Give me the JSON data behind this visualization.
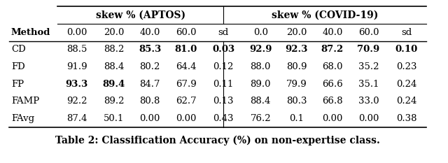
{
  "title": "Table 2: Classification Accuracy (%) on non-expertise class.",
  "col_group1_header": "skew % (APTOS)",
  "col_group2_header": "skew % (COVID-19)",
  "method_header": "Method",
  "sub_headers": [
    "0.00",
    "20.0",
    "40.0",
    "60.0",
    "sd",
    "0.0",
    "20.0",
    "40.0",
    "60.0",
    "sd"
  ],
  "methods": [
    "CD",
    "FD",
    "FP",
    "FAMP",
    "FAvg"
  ],
  "data": [
    [
      "88.5",
      "88.2",
      "85.3",
      "81.0",
      "0.03",
      "92.9",
      "92.3",
      "87.2",
      "70.9",
      "0.10"
    ],
    [
      "91.9",
      "88.4",
      "80.2",
      "64.4",
      "0.12",
      "88.0",
      "80.9",
      "68.0",
      "35.2",
      "0.23"
    ],
    [
      "93.3",
      "89.4",
      "84.7",
      "67.9",
      "0.11",
      "89.0",
      "79.9",
      "66.6",
      "35.1",
      "0.24"
    ],
    [
      "92.2",
      "89.2",
      "80.8",
      "62.7",
      "0.13",
      "88.4",
      "80.3",
      "66.8",
      "33.0",
      "0.24"
    ],
    [
      "87.4",
      "50.1",
      "0.00",
      "0.00",
      "0.43",
      "76.2",
      "0.1",
      "0.00",
      "0.00",
      "0.38"
    ]
  ],
  "bold_cells": {
    "0": [
      2,
      3,
      4,
      5,
      6,
      7,
      8,
      9,
      10
    ],
    "2": [
      1,
      2
    ]
  },
  "background_color": "#ffffff",
  "font_size": 9.5
}
